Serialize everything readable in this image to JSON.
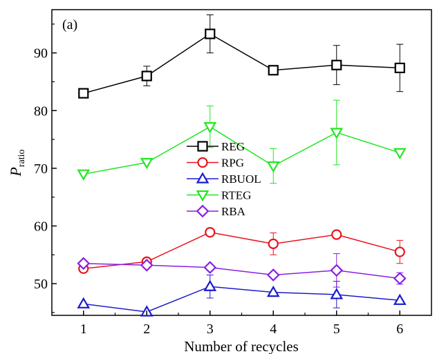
{
  "chart_data": {
    "type": "line",
    "panel_label": "(a)",
    "title": "",
    "xlabel": "Number of recycles",
    "ylabel_main": "P",
    "ylabel_sub": "ratio",
    "x": [
      1,
      2,
      3,
      4,
      5,
      6
    ],
    "x_ticks": [
      "1",
      "2",
      "3",
      "4",
      "5",
      "6"
    ],
    "y_ticks": [
      "50",
      "60",
      "70",
      "80",
      "90"
    ],
    "xlim": [
      0.5,
      6.5
    ],
    "ylim": [
      44.5,
      97.5
    ],
    "grid": false,
    "legend_position": "center-left",
    "series": [
      {
        "name": "REG",
        "marker": "square",
        "color": "#000000",
        "values": [
          83.0,
          86.0,
          93.3,
          87.0,
          87.9,
          87.4
        ],
        "errors": [
          0,
          1.7,
          3.3,
          0,
          3.4,
          4.1
        ]
      },
      {
        "name": "RPG",
        "marker": "circle",
        "color": "#e8131b",
        "values": [
          52.6,
          53.8,
          58.9,
          56.9,
          58.5,
          55.5
        ],
        "errors": [
          0,
          0,
          0,
          1.9,
          0,
          2.0
        ]
      },
      {
        "name": "RBUOL",
        "marker": "triangle-up",
        "color": "#1a1acc",
        "values": [
          46.5,
          45.1,
          49.5,
          48.5,
          48.1,
          47.1
        ],
        "errors": [
          0,
          0,
          2.0,
          0,
          2.3,
          0
        ]
      },
      {
        "name": "RTEG",
        "marker": "triangle-down",
        "color": "#22e622",
        "values": [
          69.0,
          71.0,
          77.2,
          70.4,
          76.2,
          72.7
        ],
        "errors": [
          0,
          0,
          3.6,
          3.0,
          5.6,
          0
        ]
      },
      {
        "name": "RBA",
        "marker": "diamond",
        "color": "#8a1ee0",
        "values": [
          53.5,
          53.2,
          52.8,
          51.5,
          52.3,
          50.9
        ],
        "errors": [
          0,
          0,
          0,
          0,
          2.9,
          1.0
        ]
      }
    ]
  }
}
